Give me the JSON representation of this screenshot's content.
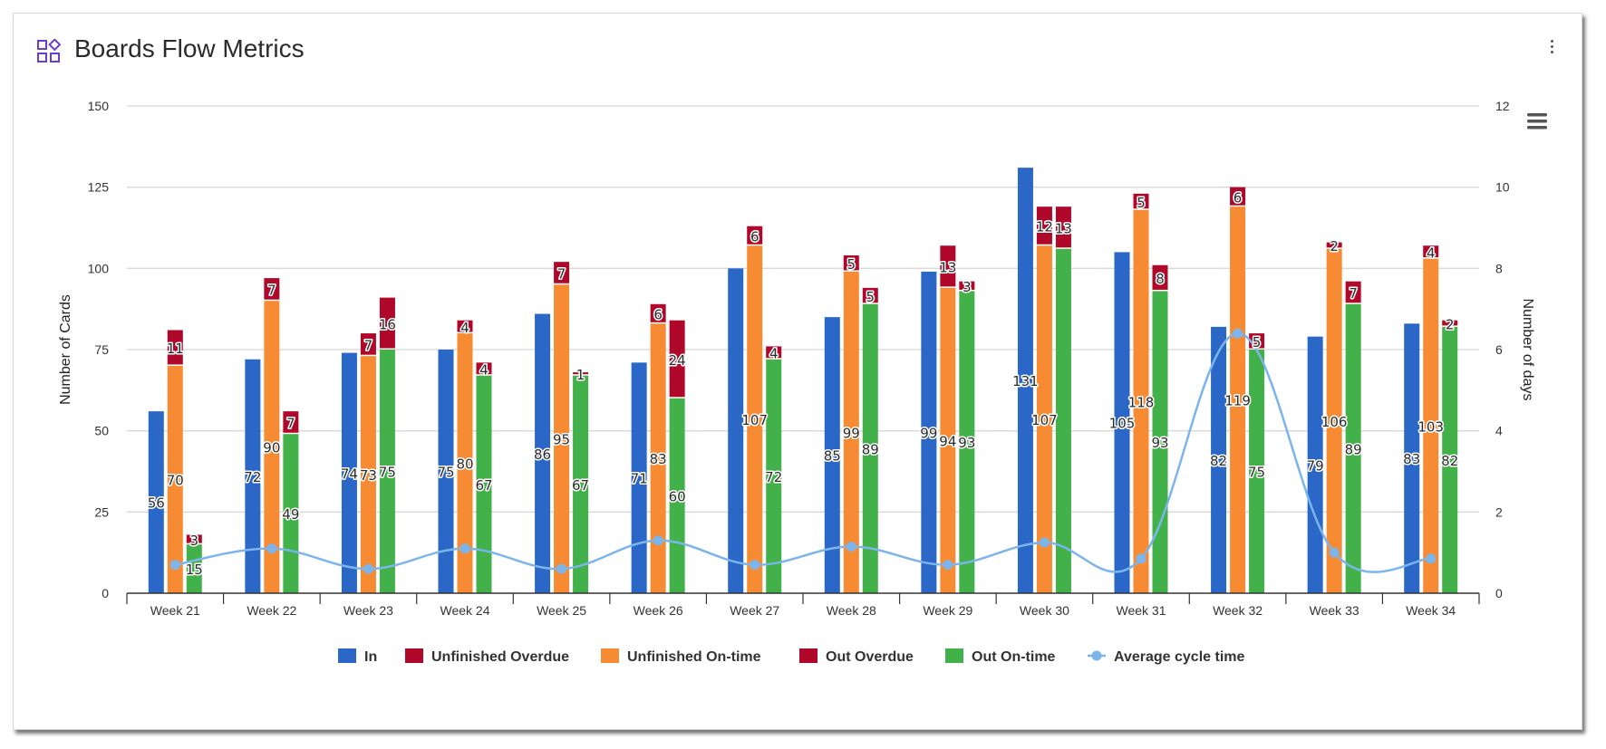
{
  "header": {
    "title": "Boards Flow Metrics",
    "title_icon": "widgets-icon",
    "menu_icon": "kebab-menu-icon",
    "export_icon": "hamburger-menu-icon"
  },
  "colors": {
    "in": "#2b67c6",
    "unfinished_overdue": "#b0082a",
    "unfinished_ontime": "#f68b33",
    "out_overdue": "#b0082a",
    "out_ontime": "#43b14a",
    "avg_cycle": "#7cb5ec",
    "icon": "#6b3fc9"
  },
  "chart_data": {
    "type": "bar",
    "title": "",
    "categories": [
      "Week 21",
      "Week 22",
      "Week 23",
      "Week 24",
      "Week 25",
      "Week 26",
      "Week 27",
      "Week 28",
      "Week 29",
      "Week 30",
      "Week 31",
      "Week 32",
      "Week 33",
      "Week 34"
    ],
    "ylabel": "Number of Cards",
    "y2label": "Number of days",
    "ylim": [
      0,
      150
    ],
    "yticks": [
      "0",
      "25",
      "50",
      "75",
      "100",
      "125",
      "150"
    ],
    "y2lim": [
      0,
      12
    ],
    "y2ticks": [
      "0",
      "2",
      "4",
      "6",
      "8",
      "10",
      "12"
    ],
    "grid": true,
    "legend_position": "bottom-center",
    "series": [
      {
        "name": "In",
        "type": "bar",
        "stack": "in",
        "values": [
          56,
          72,
          74,
          75,
          86,
          71,
          100,
          85,
          99,
          131,
          105,
          82,
          79,
          83
        ],
        "labels": [
          "56",
          "72",
          "74",
          "75",
          "86",
          "71",
          "",
          "85",
          "99",
          "131",
          "105",
          "82",
          "79",
          "83"
        ]
      },
      {
        "name": "Unfinished Overdue",
        "type": "bar",
        "stack": "unfinished",
        "values": [
          11,
          7,
          7,
          4,
          7,
          6,
          6,
          5,
          13,
          12,
          5,
          6,
          2,
          4
        ],
        "labels": [
          "11",
          "7",
          "7",
          "4",
          "7",
          "6",
          "6",
          "5",
          "13",
          "12",
          "5",
          "6",
          "2",
          "4"
        ]
      },
      {
        "name": "Unfinished On-time",
        "type": "bar",
        "stack": "unfinished",
        "values": [
          70,
          90,
          73,
          80,
          95,
          83,
          107,
          99,
          94,
          107,
          118,
          119,
          106,
          103
        ],
        "labels": [
          "70",
          "90",
          "73",
          "80",
          "95",
          "83",
          "107",
          "99",
          "94",
          "107",
          "118",
          "119",
          "106",
          "103"
        ]
      },
      {
        "name": "Out Overdue",
        "type": "bar",
        "stack": "out",
        "values": [
          3,
          7,
          16,
          4,
          1,
          24,
          4,
          5,
          3,
          13,
          8,
          5,
          7,
          2
        ],
        "labels": [
          "3",
          "7",
          "16",
          "4",
          "1",
          "24",
          "4",
          "5",
          "3",
          "13",
          "8",
          "5",
          "7",
          "2"
        ]
      },
      {
        "name": "Out On-time",
        "type": "bar",
        "stack": "out",
        "values": [
          15,
          49,
          75,
          67,
          67,
          60,
          72,
          89,
          93,
          106,
          93,
          75,
          89,
          82
        ],
        "labels": [
          "15",
          "49",
          "75",
          "67",
          "67",
          "60",
          "72",
          "89",
          "93",
          "",
          "93",
          "75",
          "89",
          "82"
        ]
      },
      {
        "name": "Average cycle time",
        "type": "line",
        "axis": "right",
        "values": [
          0.7,
          1.1,
          0.6,
          1.1,
          0.6,
          1.3,
          0.7,
          1.15,
          0.7,
          1.25,
          0.85,
          6.4,
          1.0,
          0.85
        ]
      }
    ]
  }
}
